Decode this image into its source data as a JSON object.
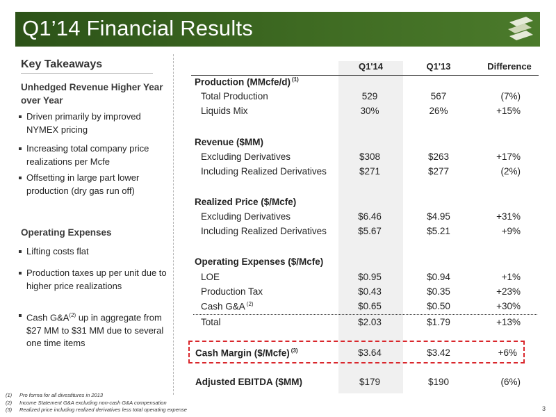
{
  "title": "Q1’14 Financial Results",
  "colors": {
    "title_bar": "#3e6a22",
    "highlight_border": "#d9262b",
    "column_shade": "#f0f0f0"
  },
  "logo_icon": "company-logo-s-shape",
  "left": {
    "heading": "Key Takeaways",
    "section1": {
      "title": "Unhedged Revenue Higher Year over Year",
      "bullets": [
        "Driven primarily by improved NYMEX pricing",
        "Increasing total company price realizations per Mcfe",
        "Offsetting in large part lower production (dry gas run off)"
      ]
    },
    "section2": {
      "title": "Operating Expenses",
      "bullet1": "Lifting costs flat",
      "bullet2": "Production taxes up per unit due to higher price realizations",
      "bullet3_a": "Cash G&A",
      "bullet3_sup": "(2)",
      "bullet3_b": " up in aggregate from $27 MM to $31 MM due to several one time items"
    }
  },
  "table": {
    "headers": {
      "q14": "Q1'14",
      "q13": "Q1'13",
      "diff": "Difference"
    },
    "rows": {
      "prod_head": {
        "label": "Production (MMcfe/d)",
        "sup": "(1)"
      },
      "total_prod": {
        "label": "Total Production",
        "q14": "529",
        "q13": "567",
        "diff": "(7%)"
      },
      "liquids": {
        "label": "Liquids Mix",
        "q14": "30%",
        "q13": "26%",
        "diff": "+15%"
      },
      "rev_head": {
        "label": "Revenue ($MM)"
      },
      "rev_ex": {
        "label": "Excluding Derivatives",
        "q14": "$308",
        "q13": "$263",
        "diff": "+17%"
      },
      "rev_inc": {
        "label": "Including Realized Derivatives",
        "q14": "$271",
        "q13": "$277",
        "diff": "(2%)"
      },
      "price_head": {
        "label": "Realized Price ($/Mcfe)"
      },
      "price_ex": {
        "label": "Excluding Derivatives",
        "q14": "$6.46",
        "q13": "$4.95",
        "diff": "+31%"
      },
      "price_inc": {
        "label": "Including Realized Derivatives",
        "q14": "$5.67",
        "q13": "$5.21",
        "diff": "+9%"
      },
      "opex_head": {
        "label": "Operating Expenses ($/Mcfe)"
      },
      "loe": {
        "label": "LOE",
        "q14": "$0.95",
        "q13": "$0.94",
        "diff": "+1%"
      },
      "ptax": {
        "label": "Production Tax",
        "q14": "$0.43",
        "q13": "$0.35",
        "diff": "+23%"
      },
      "cga": {
        "label": "Cash G&A",
        "sup": "(2)",
        "q14": "$0.65",
        "q13": "$0.50",
        "diff": "+30%"
      },
      "total": {
        "label": "Total",
        "q14": "$2.03",
        "q13": "$1.79",
        "diff": "+13%"
      },
      "margin": {
        "label": "Cash Margin ($/Mcfe)",
        "sup": "(3)",
        "q14": "$3.64",
        "q13": "$3.42",
        "diff": "+6%"
      },
      "ebitda": {
        "label": "Adjusted EBITDA ($MM)",
        "q14": "$179",
        "q13": "$190",
        "diff": "(6%)"
      }
    }
  },
  "footnotes": [
    {
      "num": "(1)",
      "text": "Pro forma for all divestitures in 2013"
    },
    {
      "num": "(2)",
      "text": "Income Statement G&A excluding non-cash G&A compensation"
    },
    {
      "num": "(3)",
      "text": "Realized price including realized derivatives less total operating expense"
    }
  ],
  "page_number": "3"
}
